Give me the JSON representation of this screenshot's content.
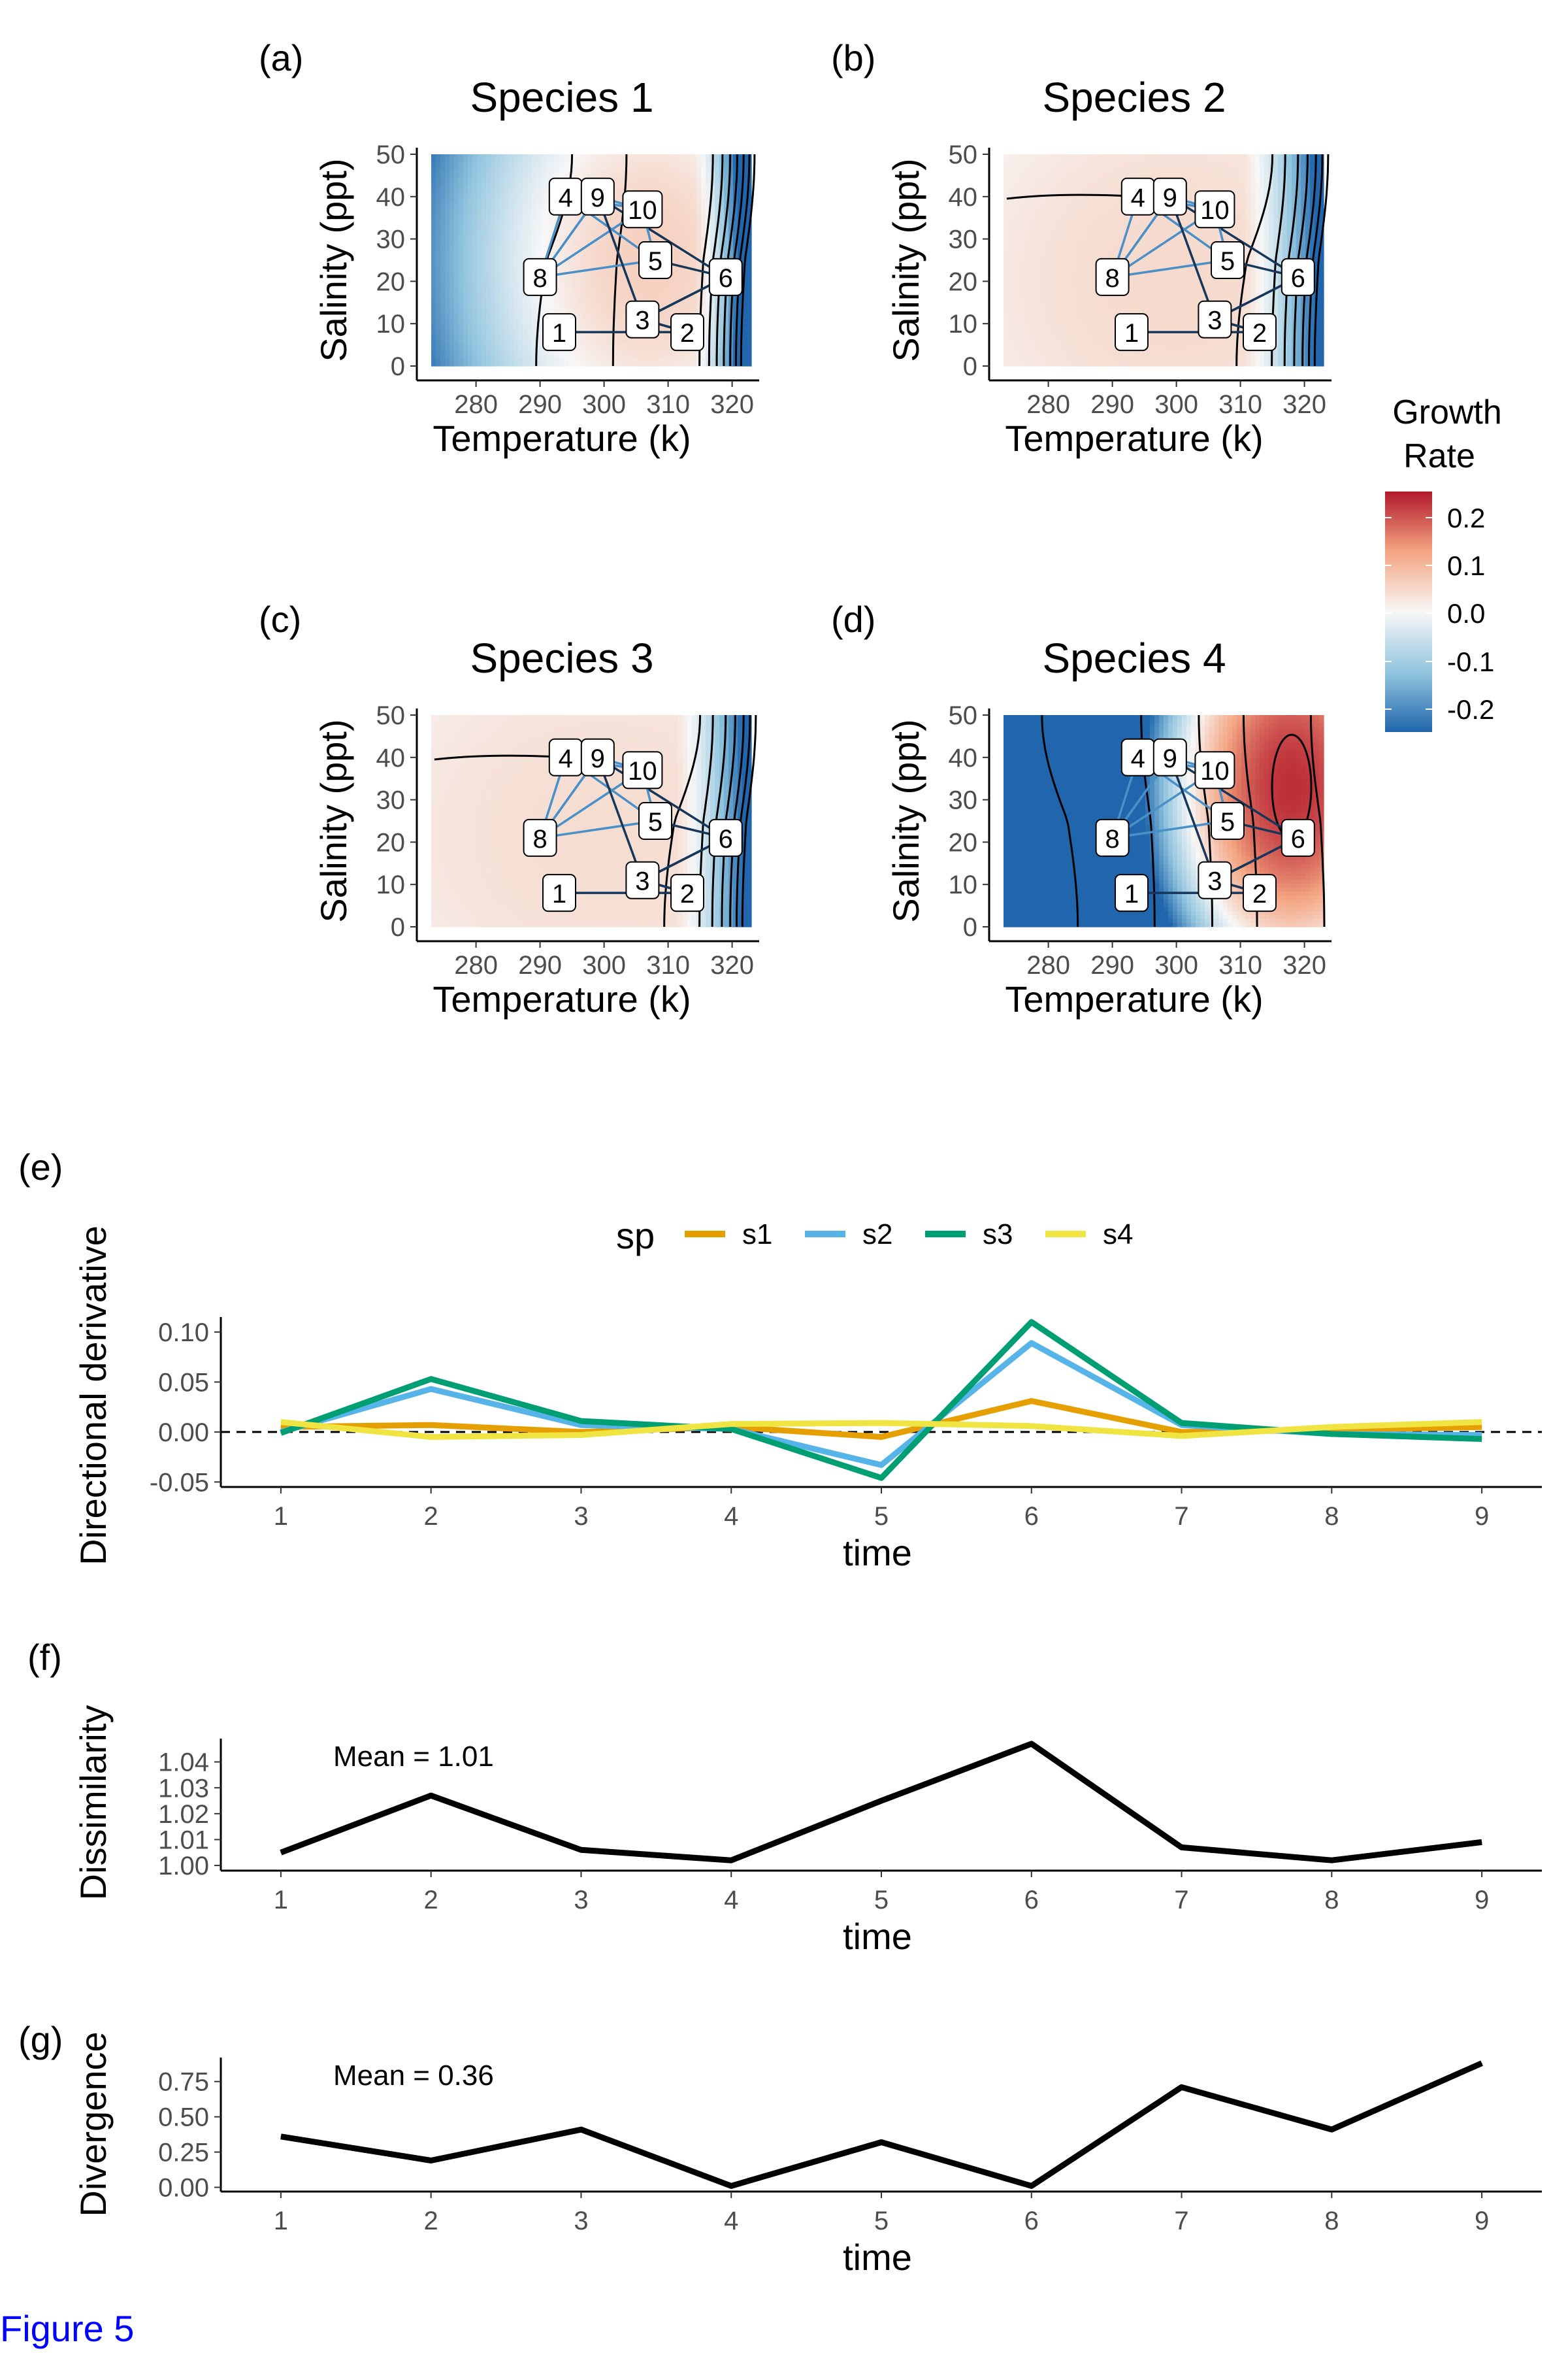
{
  "figure_caption": "Figure 5",
  "colors": {
    "caption": "#0000ff",
    "s1": "#E69F00",
    "s2": "#56B4E9",
    "s3": "#009E73",
    "s4": "#F0E442",
    "trajectory_light": "#4a90c8",
    "trajectory_dark": "#16365a",
    "contour": "#000000",
    "colorscale": [
      "#2166ac",
      "#92c5de",
      "#f7f7f7",
      "#f4a582",
      "#b2182b"
    ]
  },
  "legend_growth": {
    "title_line1": "Growth",
    "title_line2": "Rate",
    "ticks": [
      "0.2",
      "0.1",
      "0.0",
      "-0.1",
      "-0.2"
    ]
  },
  "heatmap_panels": [
    {
      "tag": "(a)",
      "title": "Species 1",
      "xlabel": "Temperature (k)",
      "ylabel": "Salinity (ppt)"
    },
    {
      "tag": "(b)",
      "title": "Species 2",
      "xlabel": "Temperature (k)",
      "ylabel": "Salinity (ppt)"
    },
    {
      "tag": "(c)",
      "title": "Species 3",
      "xlabel": "Temperature (k)",
      "ylabel": "Salinity (ppt)"
    },
    {
      "tag": "(d)",
      "title": "Species 4",
      "xlabel": "Temperature (k)",
      "ylabel": "Salinity (ppt)"
    }
  ],
  "panel_e": {
    "tag": "(e)",
    "legend_title": "sp"
  },
  "panel_f": {
    "tag": "(f)",
    "annotation": "Mean = 1.01"
  },
  "panel_g": {
    "tag": "(g)",
    "annotation": "Mean = 0.36"
  },
  "chart_data": [
    {
      "type": "heatmap",
      "title": "Species 1",
      "xlabel": "Temperature (k)",
      "ylabel": "Salinity (ppt)",
      "xlim": [
        273,
        323
      ],
      "ylim": [
        0,
        50
      ],
      "xticks": [
        280,
        290,
        300,
        310,
        320
      ],
      "yticks": [
        0,
        10,
        20,
        30,
        40,
        50
      ],
      "optimum": {
        "temperature": 307,
        "salinity": 25
      },
      "colorbar_range": [
        -0.25,
        0.25
      ],
      "grid": false,
      "trajectory_points": [
        {
          "label": "1",
          "temperature": 293,
          "salinity": 8
        },
        {
          "label": "2",
          "temperature": 313,
          "salinity": 8
        },
        {
          "label": "3",
          "temperature": 306,
          "salinity": 11
        },
        {
          "label": "4",
          "temperature": 294,
          "salinity": 40
        },
        {
          "label": "5",
          "temperature": 308,
          "salinity": 25
        },
        {
          "label": "6",
          "temperature": 319,
          "salinity": 21
        },
        {
          "label": "8",
          "temperature": 290,
          "salinity": 21
        },
        {
          "label": "9",
          "temperature": 299,
          "salinity": 40
        },
        {
          "label": "10",
          "temperature": 306,
          "salinity": 37
        }
      ]
    },
    {
      "type": "heatmap",
      "title": "Species 2",
      "xlabel": "Temperature (k)",
      "ylabel": "Salinity (ppt)",
      "xlim": [
        273,
        323
      ],
      "ylim": [
        0,
        50
      ],
      "xticks": [
        280,
        290,
        300,
        310,
        320
      ],
      "yticks": [
        0,
        10,
        20,
        30,
        40,
        50
      ],
      "colorbar_range": [
        -0.25,
        0.25
      ],
      "grid": false,
      "trajectory_points": [
        {
          "label": "1",
          "temperature": 293,
          "salinity": 8
        },
        {
          "label": "2",
          "temperature": 313,
          "salinity": 8
        },
        {
          "label": "3",
          "temperature": 306,
          "salinity": 11
        },
        {
          "label": "4",
          "temperature": 294,
          "salinity": 40
        },
        {
          "label": "5",
          "temperature": 308,
          "salinity": 25
        },
        {
          "label": "6",
          "temperature": 319,
          "salinity": 21
        },
        {
          "label": "8",
          "temperature": 290,
          "salinity": 21
        },
        {
          "label": "9",
          "temperature": 299,
          "salinity": 40
        },
        {
          "label": "10",
          "temperature": 306,
          "salinity": 37
        }
      ]
    },
    {
      "type": "heatmap",
      "title": "Species 3",
      "xlabel": "Temperature (k)",
      "ylabel": "Salinity (ppt)",
      "xlim": [
        273,
        323
      ],
      "ylim": [
        0,
        50
      ],
      "xticks": [
        280,
        290,
        300,
        310,
        320
      ],
      "yticks": [
        0,
        10,
        20,
        30,
        40,
        50
      ],
      "colorbar_range": [
        -0.25,
        0.25
      ],
      "grid": false,
      "trajectory_points": [
        {
          "label": "1",
          "temperature": 293,
          "salinity": 8
        },
        {
          "label": "2",
          "temperature": 313,
          "salinity": 8
        },
        {
          "label": "3",
          "temperature": 306,
          "salinity": 11
        },
        {
          "label": "4",
          "temperature": 294,
          "salinity": 40
        },
        {
          "label": "5",
          "temperature": 308,
          "salinity": 25
        },
        {
          "label": "6",
          "temperature": 319,
          "salinity": 21
        },
        {
          "label": "8",
          "temperature": 290,
          "salinity": 21
        },
        {
          "label": "9",
          "temperature": 299,
          "salinity": 40
        },
        {
          "label": "10",
          "temperature": 306,
          "salinity": 37
        }
      ]
    },
    {
      "type": "heatmap",
      "title": "Species 4",
      "xlabel": "Temperature (k)",
      "ylabel": "Salinity (ppt)",
      "xlim": [
        273,
        323
      ],
      "ylim": [
        0,
        50
      ],
      "xticks": [
        280,
        290,
        300,
        310,
        320
      ],
      "yticks": [
        0,
        10,
        20,
        30,
        40,
        50
      ],
      "optimum": {
        "temperature": 318,
        "salinity": 33
      },
      "colorbar_range": [
        -0.25,
        0.25
      ],
      "grid": false,
      "trajectory_points": [
        {
          "label": "1",
          "temperature": 293,
          "salinity": 8
        },
        {
          "label": "2",
          "temperature": 313,
          "salinity": 8
        },
        {
          "label": "3",
          "temperature": 306,
          "salinity": 11
        },
        {
          "label": "4",
          "temperature": 294,
          "salinity": 40
        },
        {
          "label": "5",
          "temperature": 308,
          "salinity": 25
        },
        {
          "label": "6",
          "temperature": 319,
          "salinity": 21
        },
        {
          "label": "8",
          "temperature": 290,
          "salinity": 21
        },
        {
          "label": "9",
          "temperature": 299,
          "salinity": 40
        },
        {
          "label": "10",
          "temperature": 306,
          "salinity": 37
        }
      ]
    },
    {
      "type": "line",
      "xlabel": "time",
      "ylabel": "Directional derivative",
      "x": [
        1,
        2,
        3,
        4,
        5,
        6,
        7,
        8,
        9
      ],
      "xlim": [
        0.6,
        9.4
      ],
      "ylim": [
        -0.055,
        0.115
      ],
      "yticks": [
        "0.10",
        "0.05",
        "0.00",
        "-0.05"
      ],
      "reference_line": {
        "y": 0,
        "style": "dashed"
      },
      "legend_position": "top",
      "series": [
        {
          "name": "s1",
          "values": [
            0.005,
            0.007,
            0.0,
            0.005,
            -0.005,
            0.031,
            0.0,
            0.002,
            0.005
          ]
        },
        {
          "name": "s2",
          "values": [
            0.0,
            0.043,
            0.007,
            0.003,
            -0.033,
            0.089,
            0.007,
            -0.002,
            -0.003
          ]
        },
        {
          "name": "s3",
          "values": [
            -0.001,
            0.053,
            0.011,
            0.003,
            -0.046,
            0.11,
            0.009,
            -0.002,
            -0.007
          ]
        },
        {
          "name": "s4",
          "values": [
            0.01,
            -0.005,
            -0.003,
            0.008,
            0.009,
            0.006,
            -0.004,
            0.005,
            0.01
          ]
        }
      ],
      "grid": false
    },
    {
      "type": "line",
      "xlabel": "time",
      "ylabel": "Dissimilarity",
      "x": [
        1,
        2,
        3,
        4,
        5,
        6,
        7,
        8,
        9
      ],
      "values": [
        1.005,
        1.027,
        1.006,
        1.002,
        1.025,
        1.047,
        1.007,
        1.002,
        1.009
      ],
      "xlim": [
        0.6,
        9.4
      ],
      "ylim": [
        0.998,
        1.049
      ],
      "yticks": [
        "1.04",
        "1.03",
        "1.02",
        "1.01",
        "1.00"
      ],
      "annotation": "Mean = 1.01",
      "grid": false
    },
    {
      "type": "line",
      "xlabel": "time",
      "ylabel": "Divergence",
      "x": [
        1,
        2,
        3,
        4,
        5,
        6,
        7,
        8,
        9
      ],
      "values": [
        0.36,
        0.19,
        0.41,
        0.01,
        0.32,
        0.01,
        0.71,
        0.41,
        0.88
      ],
      "xlim": [
        0.6,
        9.4
      ],
      "ylim": [
        -0.03,
        0.92
      ],
      "yticks": [
        "0.75",
        "0.50",
        "0.25",
        "0.00"
      ],
      "annotation": "Mean = 0.36",
      "grid": false
    }
  ]
}
